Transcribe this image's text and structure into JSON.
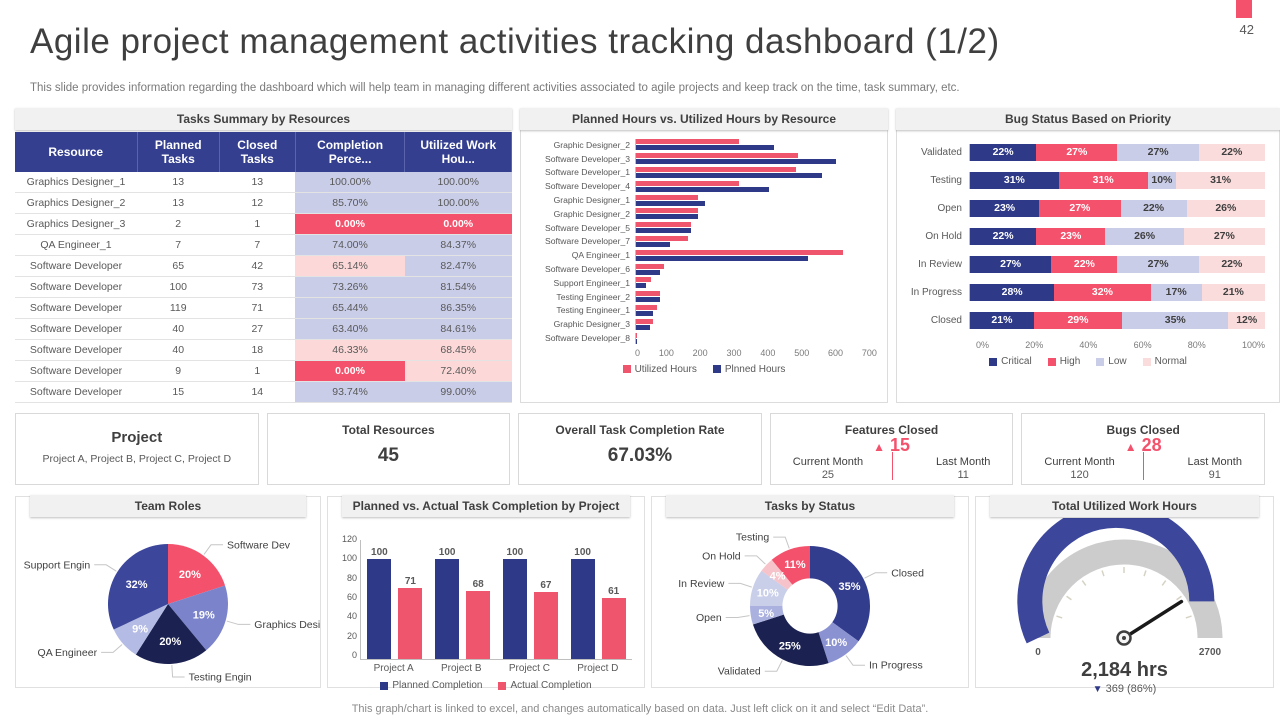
{
  "page": {
    "number": "42",
    "title": "Agile project management activities tracking dashboard (1/2)",
    "subtitle": "This slide provides information regarding the dashboard which will help team in managing different activities associated to agile projects and keep track on the time, task summary, etc.",
    "footer": "This graph/chart is linked to excel, and changes automatically based on data. Just left click on it and select “Edit Data”."
  },
  "colors": {
    "navy": "#2e3a87",
    "pink": "#f4516c",
    "light_purple": "#c9cde8",
    "light_pink": "#fcd9d8",
    "header_navy": "#343f90",
    "gauge_blue": "#3c469b",
    "gauge_track": "#cccccc"
  },
  "table": {
    "title": "Tasks Summary by Resources",
    "columns": [
      "Resource",
      "Planned Tasks",
      "Closed Tasks",
      "Completion Perce...",
      "Utilized Work Hou..."
    ],
    "rows": [
      {
        "resource": "Graphics Designer_1",
        "planned": "13",
        "closed": "13",
        "completion": "100.00%",
        "utilized": "100.00%",
        "completion_style": "purple",
        "utilized_style": "purple"
      },
      {
        "resource": "Graphics Designer_2",
        "planned": "13",
        "closed": "12",
        "completion": "85.70%",
        "utilized": "100.00%",
        "completion_style": "purple",
        "utilized_style": "purple"
      },
      {
        "resource": "Graphics Designer_3",
        "planned": "2",
        "closed": "1",
        "completion": "0.00%",
        "utilized": "0.00%",
        "completion_style": "red",
        "utilized_style": "red"
      },
      {
        "resource": "QA Engineer_1",
        "planned": "7",
        "closed": "7",
        "completion": "74.00%",
        "utilized": "84.37%",
        "completion_style": "purple",
        "utilized_style": "purple"
      },
      {
        "resource": "Software Developer",
        "planned": "65",
        "closed": "42",
        "completion": "65.14%",
        "utilized": "82.47%",
        "completion_style": "pink",
        "utilized_style": "purple"
      },
      {
        "resource": "Software Developer",
        "planned": "100",
        "closed": "73",
        "completion": "73.26%",
        "utilized": "81.54%",
        "completion_style": "purple",
        "utilized_style": "purple"
      },
      {
        "resource": "Software Developer",
        "planned": "119",
        "closed": "71",
        "completion": "65.44%",
        "utilized": "86.35%",
        "completion_style": "purple",
        "utilized_style": "purple"
      },
      {
        "resource": "Software Developer",
        "planned": "40",
        "closed": "27",
        "completion": "63.40%",
        "utilized": "84.61%",
        "completion_style": "purple",
        "utilized_style": "purple"
      },
      {
        "resource": "Software Developer",
        "planned": "40",
        "closed": "18",
        "completion": "46.33%",
        "utilized": "68.45%",
        "completion_style": "pink",
        "utilized_style": "pink"
      },
      {
        "resource": "Software Developer",
        "planned": "9",
        "closed": "1",
        "completion": "0.00%",
        "utilized": "72.40%",
        "completion_style": "red",
        "utilized_style": "pink"
      },
      {
        "resource": "Software Developer",
        "planned": "15",
        "closed": "14",
        "completion": "93.74%",
        "utilized": "99.00%",
        "completion_style": "purple",
        "utilized_style": "purple"
      }
    ]
  },
  "kpis": {
    "project": {
      "title": "Project",
      "value": "Project A, Project B, Project C, Project D"
    },
    "total_resources": {
      "title": "Total Resources",
      "value": "45"
    },
    "completion_rate": {
      "title": "Overall Task Completion Rate",
      "value": "67.03%"
    },
    "features_closed": {
      "title": "Features Closed",
      "delta": "15",
      "current_label": "Current Month",
      "current": "25",
      "last_label": "Last Month",
      "last": "11"
    },
    "bugs_closed": {
      "title": "Bugs Closed",
      "delta": "28",
      "current_label": "Current Month",
      "current": "120",
      "last_label": "Last Month",
      "last": "91"
    }
  },
  "chart_data": [
    {
      "id": "planned_vs_utilized",
      "type": "bar",
      "orientation": "horizontal",
      "title": "Planned Hours vs. Utilized Hours by Resource",
      "categories": [
        "Graphic Designer_2",
        "Software Developer_3",
        "Software Developer_1",
        "Software Developer_4",
        "Graphic Designer_1",
        "Graphic Designer_2",
        "Software Developer_5",
        "Software Developer_7",
        "QA Engineer_1",
        "Software Developer_6",
        "Support Engineer_1",
        "Testing Engineer_2",
        "Testing Engineer_1",
        "Graphic Designer_3",
        "Software Developer_8"
      ],
      "series": [
        {
          "name": "Utilized Hours",
          "color": "#f0556e",
          "values": [
            300,
            470,
            465,
            300,
            180,
            180,
            160,
            150,
            600,
            80,
            45,
            70,
            60,
            50,
            4
          ]
        },
        {
          "name": "Plnned Hours",
          "color": "#2e3a87",
          "values": [
            400,
            580,
            540,
            385,
            200,
            180,
            160,
            100,
            500,
            70,
            30,
            70,
            50,
            40,
            4
          ]
        }
      ],
      "xlim": [
        0,
        700
      ],
      "xticks": [
        "0",
        "100",
        "200",
        "300",
        "400",
        "500",
        "600",
        "700"
      ],
      "legend_position": "bottom",
      "grid": false
    },
    {
      "id": "bug_status",
      "type": "bar",
      "stacked": true,
      "orientation": "horizontal",
      "title": "Bug Status Based on Priority",
      "categories": [
        "Validated",
        "Testing",
        "Open",
        "On Hold",
        "In Review",
        "In Progress",
        "Closed"
      ],
      "series": [
        {
          "name": "Critical",
          "color": "#2e3a87",
          "values": [
            22,
            31,
            23,
            22,
            27,
            28,
            21
          ]
        },
        {
          "name": "High",
          "color": "#f4516c",
          "values": [
            27,
            31,
            27,
            23,
            22,
            32,
            29
          ]
        },
        {
          "name": "Low",
          "color": "#c9cde8",
          "values": [
            27,
            10,
            22,
            26,
            27,
            17,
            35
          ]
        },
        {
          "name": "Normal",
          "color": "#fbdcdc",
          "values": [
            22,
            31,
            26,
            27,
            22,
            21,
            12
          ]
        }
      ],
      "xticks": [
        "0%",
        "20%",
        "40%",
        "60%",
        "80%",
        "100%"
      ],
      "unit": "%",
      "legend_position": "bottom",
      "grid": false
    },
    {
      "id": "team_roles",
      "type": "pie",
      "title": "Team Roles",
      "slices": [
        {
          "label": "Software Dev",
          "value": 20,
          "color": "#f4516c"
        },
        {
          "label": "Graphics Desi",
          "value": 19,
          "color": "#7b84cb"
        },
        {
          "label": "Testing Engin",
          "value": 20,
          "color": "#1b2150"
        },
        {
          "label": "QA Engineer",
          "value": 9,
          "color": "#b4bbe4"
        },
        {
          "label": "Support Engin",
          "value": 32,
          "color": "#3c469b"
        }
      ]
    },
    {
      "id": "planned_vs_actual",
      "type": "bar",
      "title": "Planned vs. Actual Task Completion by Project",
      "categories": [
        "Project A",
        "Project B",
        "Project C",
        "Project D"
      ],
      "series": [
        {
          "name": "Planned Completion",
          "color": "#2e3a87",
          "values": [
            100,
            100,
            100,
            100
          ]
        },
        {
          "name": "Actual Completion",
          "color": "#f0556e",
          "values": [
            71,
            68,
            67,
            61
          ]
        }
      ],
      "ylim": [
        0,
        120
      ],
      "yticks": [
        "120",
        "100",
        "80",
        "60",
        "40",
        "20",
        "0"
      ],
      "legend_position": "bottom",
      "grid": false
    },
    {
      "id": "tasks_by_status",
      "type": "pie",
      "donut": true,
      "title": "Tasks by Status",
      "slices": [
        {
          "label": "Closed",
          "value": 35,
          "color": "#333d8e"
        },
        {
          "label": "In Progress",
          "value": 10,
          "color": "#8a92d2"
        },
        {
          "label": "Validated",
          "value": 25,
          "color": "#1b2150"
        },
        {
          "label": "Open",
          "value": 5,
          "color": "#aab1df"
        },
        {
          "label": "In Review",
          "value": 10,
          "color": "#c9cee9"
        },
        {
          "label": "On Hold",
          "value": 4,
          "color": "#f7c3ca"
        },
        {
          "label": "Testing",
          "value": 11,
          "color": "#f4516c"
        }
      ]
    },
    {
      "id": "utilized_gauge",
      "type": "gauge",
      "title": "Total Utilized Work Hours",
      "min": "0",
      "max": "2700",
      "value_label": "2,184 hrs",
      "delta_label": "369 (86%)",
      "fill_fraction": 0.86,
      "needle_fraction": 0.82,
      "fill_color": "#3c469b",
      "track_color": "#cccccc"
    }
  ]
}
